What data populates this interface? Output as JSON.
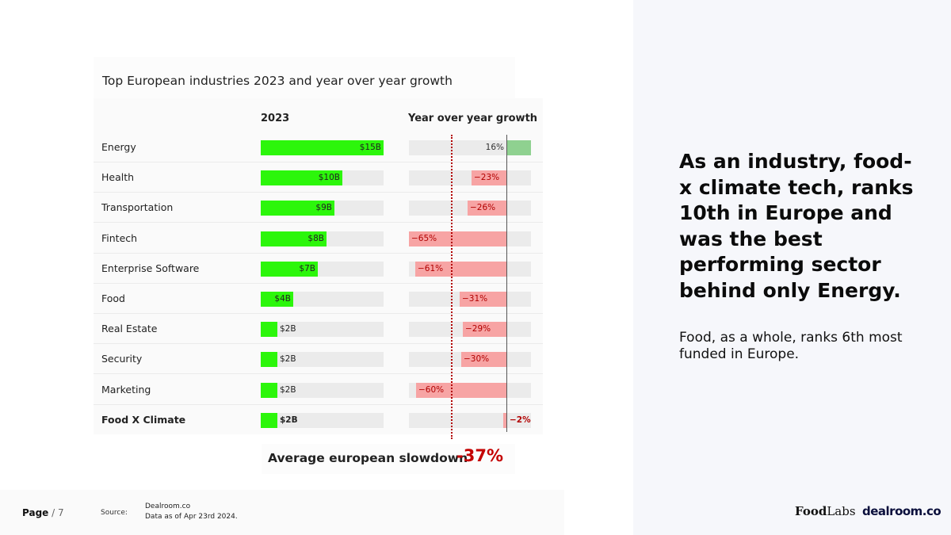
{
  "headline": "As an industry, food-x climate tech, ranks 10th in Europe and was the best performing sector behind only Energy.",
  "subtext": "Food, as a whole, ranks 6th most funded in Europe.",
  "chart_data": {
    "type": "bar",
    "title": "Top European industries 2023 and year over year growth",
    "columns": [
      "2023",
      "Year over year growth"
    ],
    "categories": [
      "Energy",
      "Health",
      "Transportation",
      "Fintech",
      "Enterprise Software",
      "Food",
      "Real Estate",
      "Security",
      "Marketing",
      "Food X Climate"
    ],
    "series": [
      {
        "name": "2023",
        "unit": "$B",
        "values": [
          15,
          10,
          9,
          8,
          7,
          4,
          2,
          2,
          2,
          2
        ],
        "labels": [
          "$15B",
          "$10B",
          "$9B",
          "$8B",
          "$7B",
          "$4B",
          "$2B",
          "$2B",
          "$2B",
          "$2B"
        ],
        "xlim": [
          0,
          15
        ]
      },
      {
        "name": "Year over year growth",
        "unit": "%",
        "values": [
          16,
          -23,
          -26,
          -65,
          -61,
          -31,
          -29,
          -30,
          -60,
          -2
        ],
        "labels": [
          "16%",
          "−23%",
          "−26%",
          "−65%",
          "−61%",
          "−31%",
          "−29%",
          "−30%",
          "−60%",
          "−2%"
        ],
        "xlim": [
          -65,
          16
        ]
      }
    ],
    "highlight": "Food X Climate",
    "reference_line": {
      "label": "Average european slowdown",
      "value": -37,
      "display": "-37%"
    }
  },
  "footer": {
    "page_label": "Page",
    "page_number": "/ 7",
    "source_label": "Source:",
    "source_line1": "Dealroom.co",
    "source_line2": "Data as of Apr 23rd 2024.",
    "logo_foodlabs_food": "Food",
    "logo_foodlabs_labs": "Labs",
    "logo_dealroom": "dealroom.co"
  },
  "colors": {
    "bar_2023": "#2cf60b",
    "bar_negative": "#f7a4a4",
    "bar_positive": "#8fd190",
    "negative_text": "#b20000",
    "average": "#c40000",
    "track": "#ebebeb",
    "panel": "#f6f7fb"
  }
}
